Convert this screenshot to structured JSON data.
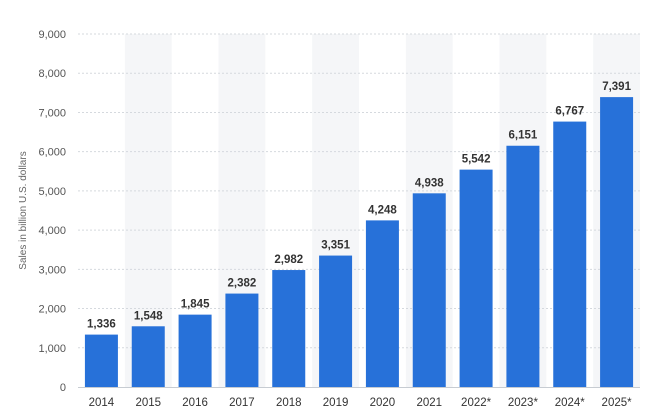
{
  "chart_data": {
    "type": "bar",
    "categories": [
      "2014",
      "2015",
      "2016",
      "2017",
      "2018",
      "2019",
      "2020",
      "2021",
      "2022*",
      "2023*",
      "2024*",
      "2025*"
    ],
    "values": [
      1336,
      1548,
      1845,
      2382,
      2982,
      3351,
      4248,
      4938,
      5542,
      6151,
      6767,
      7391
    ],
    "value_labels": [
      "1,336",
      "1,548",
      "1,845",
      "2,382",
      "2,982",
      "3,351",
      "4,248",
      "4,938",
      "5,542",
      "6,151",
      "6,767",
      "7,391"
    ],
    "ylabel": "Sales in billion U.S. dollars",
    "ylim": [
      0,
      9000
    ],
    "yticks": [
      0,
      1000,
      2000,
      3000,
      4000,
      5000,
      6000,
      7000,
      8000,
      9000
    ],
    "ytick_labels": [
      "0",
      "1,000",
      "2,000",
      "3,000",
      "4,000",
      "5,000",
      "6,000",
      "7,000",
      "8,000",
      "9,000"
    ],
    "grid": true,
    "bar_color": "#2771d9",
    "alt_band_color": "#f5f6f8",
    "grid_color": "#d5d9de"
  }
}
